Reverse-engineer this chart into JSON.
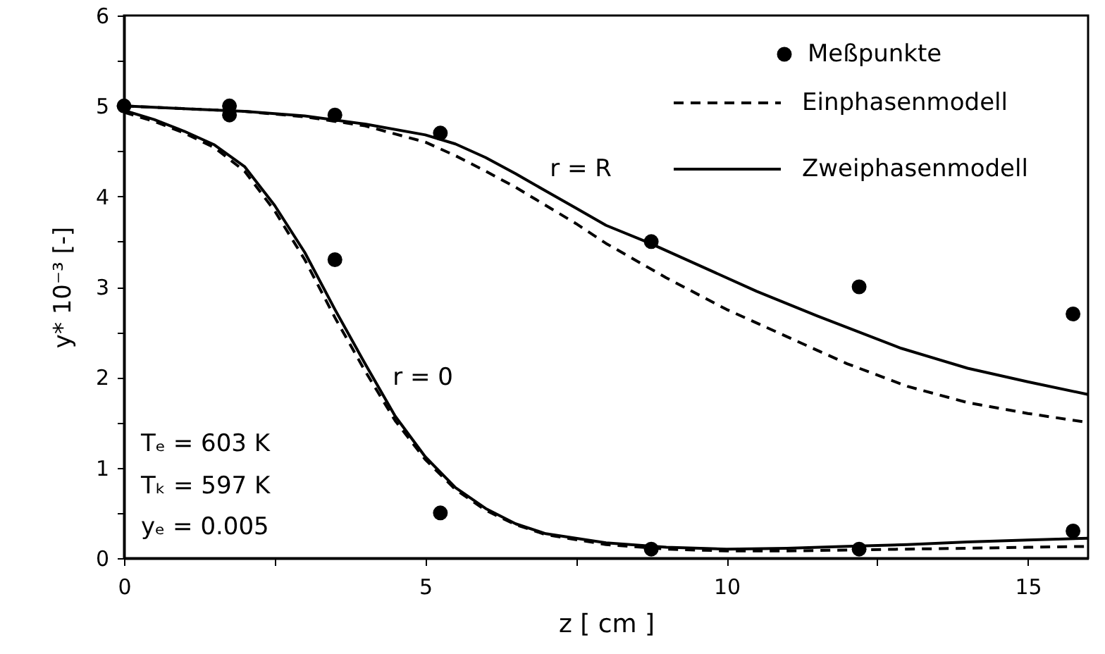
{
  "chart_data": {
    "type": "line",
    "xlabel": "z    [ cm ]",
    "ylabel": "y* 10⁻³  [-]",
    "xlim": [
      0,
      16
    ],
    "ylim": [
      0,
      6
    ],
    "xticks": [
      0,
      {
        "value": 2.5,
        "label": null
      },
      5,
      {
        "value": 7.5,
        "label": null
      },
      10,
      {
        "value": 12.5,
        "label": null
      },
      15
    ],
    "yticks": [
      0,
      {
        "value": 0.5,
        "label": null
      },
      1,
      {
        "value": 1.5,
        "label": null
      },
      2,
      {
        "value": 2.5,
        "label": null
      },
      3,
      {
        "value": 3.5,
        "label": null
      },
      4,
      {
        "value": 4.5,
        "label": null
      },
      5,
      {
        "value": 5.5,
        "label": null
      },
      6
    ],
    "legend": "top right",
    "grid": false,
    "annotations": [
      "r = R",
      "r = 0",
      "Tₑ = 603 K",
      "Tₖ = 597 K",
      "yₑ = 0.005"
    ],
    "series": [
      {
        "name": "Meßpunkte",
        "type": "scatter",
        "marker": "circle",
        "color": "#000000",
        "x": [
          0,
          1.75,
          1.75,
          3.5,
          3.5,
          5.25,
          5.25,
          8.75,
          8.75,
          12.2,
          12.2,
          15.75,
          15.75
        ],
        "values": [
          5.0,
          5.0,
          4.9,
          4.9,
          3.3,
          4.7,
          0.5,
          3.5,
          0.1,
          3.0,
          0.1,
          2.7,
          0.3
        ]
      },
      {
        "name": "Einphasenmodell",
        "type": "line",
        "line_style": "dashed",
        "color": "#000000",
        "x": [
          0,
          1,
          2,
          3,
          4,
          5,
          5.5,
          6,
          6.5,
          7,
          7.5,
          8,
          9,
          10,
          11,
          12,
          13,
          14,
          15,
          16
        ],
        "values": [
          5.0,
          4.97,
          4.94,
          4.88,
          4.78,
          4.6,
          4.45,
          4.28,
          4.1,
          3.9,
          3.7,
          3.48,
          3.1,
          2.75,
          2.45,
          2.15,
          1.9,
          1.72,
          1.6,
          1.5
        ]
      },
      {
        "name": "Zweiphasenmodell",
        "type": "line",
        "line_style": "solid",
        "color": "#000000",
        "x": [
          0,
          1,
          2,
          3,
          4,
          5,
          5.5,
          6,
          6.5,
          7,
          7.5,
          8,
          8.7,
          9.5,
          10.5,
          11.5,
          12.9,
          14,
          15,
          16
        ],
        "values": [
          5.0,
          4.97,
          4.94,
          4.89,
          4.8,
          4.68,
          4.58,
          4.43,
          4.25,
          4.06,
          3.87,
          3.68,
          3.49,
          3.25,
          2.95,
          2.68,
          2.32,
          2.1,
          1.95,
          1.81
        ]
      },
      {
        "type": "line",
        "line_style": "dashed",
        "color": "#000000",
        "x": [
          0,
          0.5,
          1,
          1.5,
          2,
          2.5,
          3,
          3.5,
          4,
          4.5,
          5,
          5.5,
          6,
          6.5,
          7,
          8,
          9,
          10,
          11,
          12,
          13,
          14,
          15,
          16
        ],
        "values": [
          4.93,
          4.83,
          4.7,
          4.54,
          4.28,
          3.84,
          3.3,
          2.66,
          2.07,
          1.52,
          1.09,
          0.76,
          0.53,
          0.37,
          0.26,
          0.15,
          0.1,
          0.08,
          0.08,
          0.09,
          0.1,
          0.11,
          0.12,
          0.13
        ]
      },
      {
        "type": "line",
        "line_style": "solid",
        "color": "#000000",
        "x": [
          0,
          0.5,
          1,
          1.5,
          2,
          2.5,
          3,
          3.5,
          4,
          4.5,
          5,
          5.5,
          6,
          6.5,
          7,
          8,
          9,
          10,
          11,
          12,
          13,
          14,
          15,
          16
        ],
        "values": [
          4.95,
          4.85,
          4.72,
          4.57,
          4.33,
          3.9,
          3.38,
          2.75,
          2.15,
          1.57,
          1.12,
          0.78,
          0.55,
          0.38,
          0.27,
          0.17,
          0.12,
          0.1,
          0.11,
          0.13,
          0.15,
          0.18,
          0.2,
          0.22
        ]
      }
    ]
  }
}
